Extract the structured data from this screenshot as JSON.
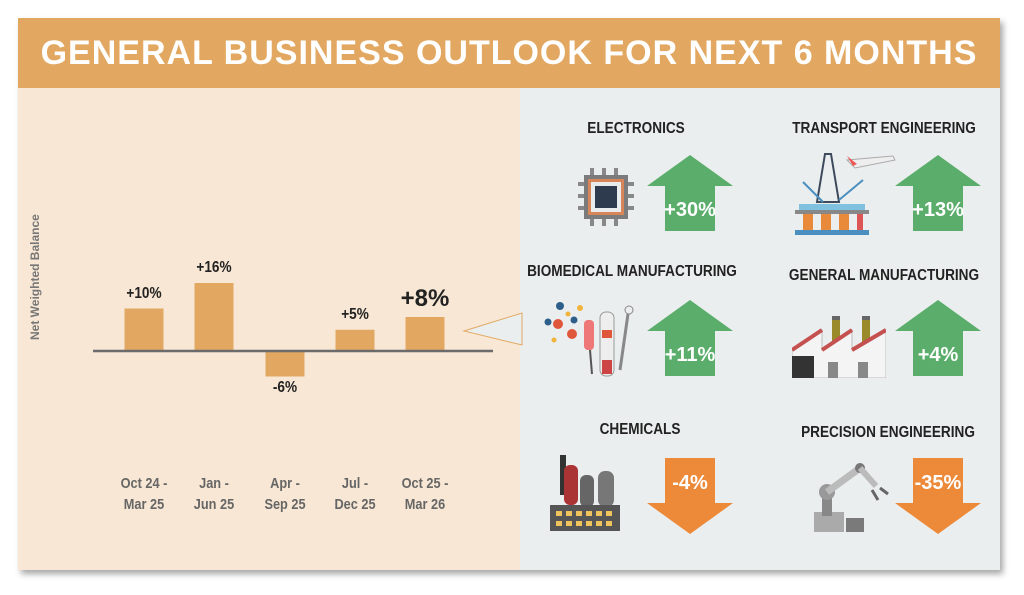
{
  "title": "GENERAL BUSINESS OUTLOOK FOR NEXT 6 MONTHS",
  "colors": {
    "header": "#e2a862",
    "bar": "#e2a862",
    "up": "#5aad6a",
    "down": "#ec8a3a"
  },
  "chart_data": {
    "type": "bar",
    "ylabel": "Net Weighted Balance",
    "categories": [
      [
        "Oct 24 -",
        "Mar 25"
      ],
      [
        "Jan -",
        "Jun 25"
      ],
      [
        "Apr -",
        "Sep 25"
      ],
      [
        "Jul -",
        "Dec 25"
      ],
      [
        "Oct 25 -",
        "Mar 26"
      ]
    ],
    "values": [
      10,
      16,
      -6,
      5,
      8
    ],
    "labels": [
      "+10%",
      "+16%",
      "-6%",
      "+5%",
      "+8%"
    ],
    "highlight_index": 4,
    "grid": false
  },
  "sectors": [
    {
      "name": "ELECTRONICS",
      "value": "+30%",
      "direction": "up",
      "icon": "microchip-icon"
    },
    {
      "name": "TRANSPORT ENGINEERING",
      "value": "+13%",
      "direction": "up",
      "icon": "oil-rig-airplane-icon"
    },
    {
      "name": "BIOMEDICAL MANUFACTURING",
      "value": "+11%",
      "direction": "up",
      "icon": "lab-tools-icon"
    },
    {
      "name": "GENERAL MANUFACTURING",
      "value": "+4%",
      "direction": "up",
      "icon": "factory-icon"
    },
    {
      "name": "CHEMICALS",
      "value": "-4%",
      "direction": "down",
      "icon": "chemical-plant-icon"
    },
    {
      "name": "PRECISION ENGINEERING",
      "value": "-35%",
      "direction": "down",
      "icon": "robot-arm-icon"
    }
  ]
}
